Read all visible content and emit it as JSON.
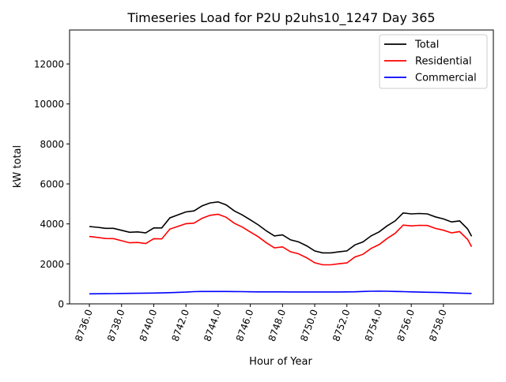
{
  "chart_data": {
    "type": "line",
    "title": "Timeseries Load for P2U p2uhs10_1247  Day 365",
    "xlabel": "Hour of Year",
    "ylabel": "kW total",
    "xlim": [
      8734.77,
      8761.1
    ],
    "ylim": [
      0,
      13700
    ],
    "xticks": [
      8736,
      8738,
      8740,
      8742,
      8744,
      8746,
      8748,
      8750,
      8752,
      8754,
      8756,
      8758
    ],
    "xtick_labels": [
      "8736.0",
      "8738.0",
      "8740.0",
      "8742.0",
      "8744.0",
      "8746.0",
      "8748.0",
      "8750.0",
      "8752.0",
      "8754.0",
      "8756.0",
      "8758.0"
    ],
    "yticks": [
      0,
      2000,
      4000,
      6000,
      8000,
      10000,
      12000
    ],
    "ytick_labels": [
      "0",
      "2000",
      "4000",
      "6000",
      "8000",
      "10000",
      "12000"
    ],
    "grid": false,
    "legend_placement": "top-right",
    "x": [
      8736,
      8736.5,
      8737,
      8737.5,
      8738,
      8738.5,
      8739,
      8739.5,
      8740,
      8740.5,
      8741,
      8741.5,
      8742,
      8742.5,
      8743,
      8743.5,
      8744,
      8744.5,
      8745,
      8745.5,
      8746,
      8746.5,
      8747,
      8747.5,
      8748,
      8748.5,
      8749,
      8749.5,
      8750,
      8750.5,
      8751,
      8751.5,
      8752,
      8752.5,
      8753,
      8753.5,
      8754,
      8754.5,
      8755,
      8755.5,
      8756,
      8756.5,
      8757,
      8757.5,
      8758,
      8758.5,
      8759,
      8759.5,
      8759.75
    ],
    "series": [
      {
        "name": "Total",
        "color": "#000000",
        "values": [
          3870,
          3830,
          3780,
          3780,
          3680,
          3580,
          3600,
          3550,
          3800,
          3800,
          4300,
          4450,
          4600,
          4650,
          4900,
          5050,
          5100,
          4950,
          4650,
          4450,
          4200,
          3950,
          3650,
          3400,
          3450,
          3200,
          3100,
          2900,
          2650,
          2550,
          2550,
          2600,
          2650,
          2950,
          3100,
          3400,
          3600,
          3900,
          4150,
          4550,
          4500,
          4520,
          4500,
          4350,
          4250,
          4100,
          4150,
          3750,
          3380
        ]
      },
      {
        "name": "Residential",
        "color": "#ff0000",
        "values": [
          3370,
          3325,
          3270,
          3265,
          3160,
          3055,
          3070,
          3015,
          3260,
          3250,
          3740,
          3875,
          4010,
          4040,
          4280,
          4430,
          4480,
          4330,
          4035,
          3840,
          3595,
          3350,
          3050,
          2800,
          2850,
          2605,
          2505,
          2305,
          2055,
          1955,
          1955,
          2005,
          2050,
          2345,
          2480,
          2770,
          2965,
          3270,
          3530,
          3940,
          3900,
          3930,
          3920,
          3775,
          3685,
          3550,
          3615,
          3225,
          2860
        ]
      },
      {
        "name": "Commercial",
        "color": "#0000ff",
        "values": [
          500,
          505,
          510,
          515,
          520,
          525,
          530,
          535,
          540,
          550,
          560,
          575,
          590,
          610,
          620,
          620,
          620,
          620,
          615,
          610,
          605,
          600,
          600,
          600,
          600,
          595,
          595,
          595,
          595,
          595,
          595,
          595,
          600,
          605,
          620,
          630,
          635,
          630,
          620,
          610,
          600,
          590,
          580,
          575,
          565,
          550,
          535,
          525,
          520
        ]
      }
    ]
  }
}
